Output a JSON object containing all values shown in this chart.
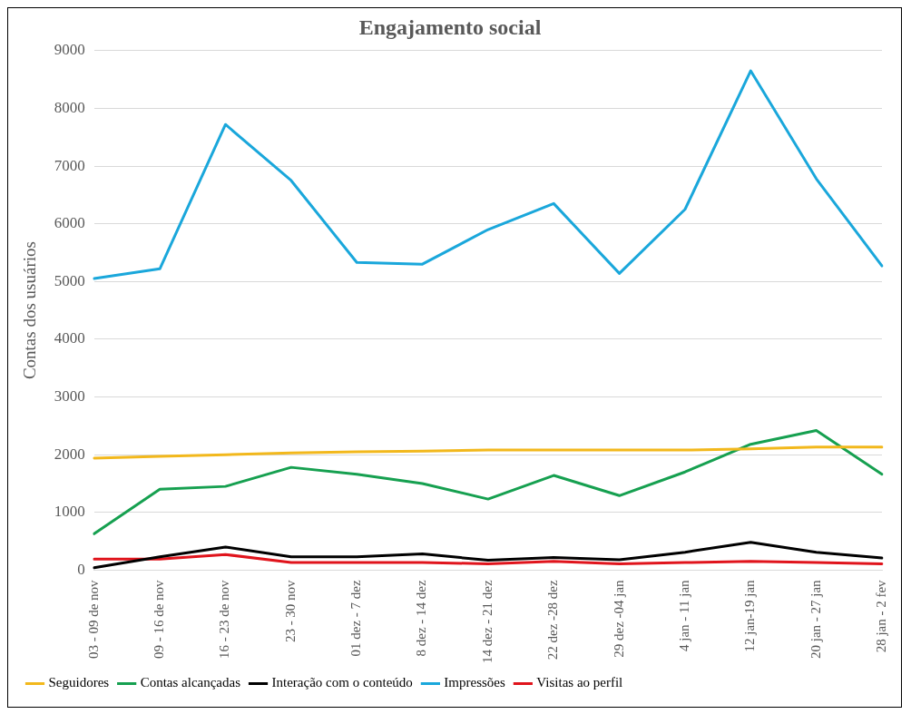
{
  "chart_data": {
    "type": "line",
    "title": "Engajamento social",
    "ylabel": "Contas dos usuários",
    "categories": [
      "03 - 09 de nov",
      "09 - 16 de nov",
      "16 - 23 de nov",
      "23 - 30 nov",
      "01 dez - 7 dez",
      "8 dez - 14 dez",
      "14 dez - 21 dez",
      "22 dez -28 dez",
      "29 dez -04 jan",
      "4 jan - 11 jan",
      "12 jan-19 jan",
      "20 jan - 27 jan",
      "28 jan - 2 fev"
    ],
    "series": [
      {
        "name": "Seguidores",
        "color": "#f2b81c",
        "values": [
          1940,
          1970,
          2000,
          2030,
          2050,
          2060,
          2080,
          2080,
          2080,
          2080,
          2100,
          2130,
          2130
        ]
      },
      {
        "name": "Contas alcançadas",
        "color": "#16a050",
        "values": [
          630,
          1400,
          1450,
          1780,
          1660,
          1500,
          1230,
          1640,
          1290,
          1700,
          2180,
          2420,
          1660
        ]
      },
      {
        "name": "Interação com o conteúdo",
        "color": "#000000",
        "values": [
          40,
          230,
          400,
          230,
          230,
          280,
          170,
          220,
          180,
          310,
          480,
          310,
          210
        ]
      },
      {
        "name": "Impressões",
        "color": "#1aa7db",
        "values": [
          5050,
          5220,
          7720,
          6750,
          5330,
          5300,
          5900,
          6350,
          5140,
          6250,
          8650,
          6780,
          5270
        ]
      },
      {
        "name": "Visitas ao perfil",
        "color": "#e0141c",
        "values": [
          190,
          190,
          270,
          130,
          130,
          130,
          110,
          150,
          110,
          130,
          150,
          130,
          110
        ]
      }
    ],
    "ylim": [
      0,
      9000
    ],
    "yticks": [
      0,
      1000,
      2000,
      3000,
      4000,
      5000,
      6000,
      7000,
      8000,
      9000
    ],
    "grid": "y",
    "legend": "bottom",
    "marker": "none",
    "line_style": "solid"
  }
}
